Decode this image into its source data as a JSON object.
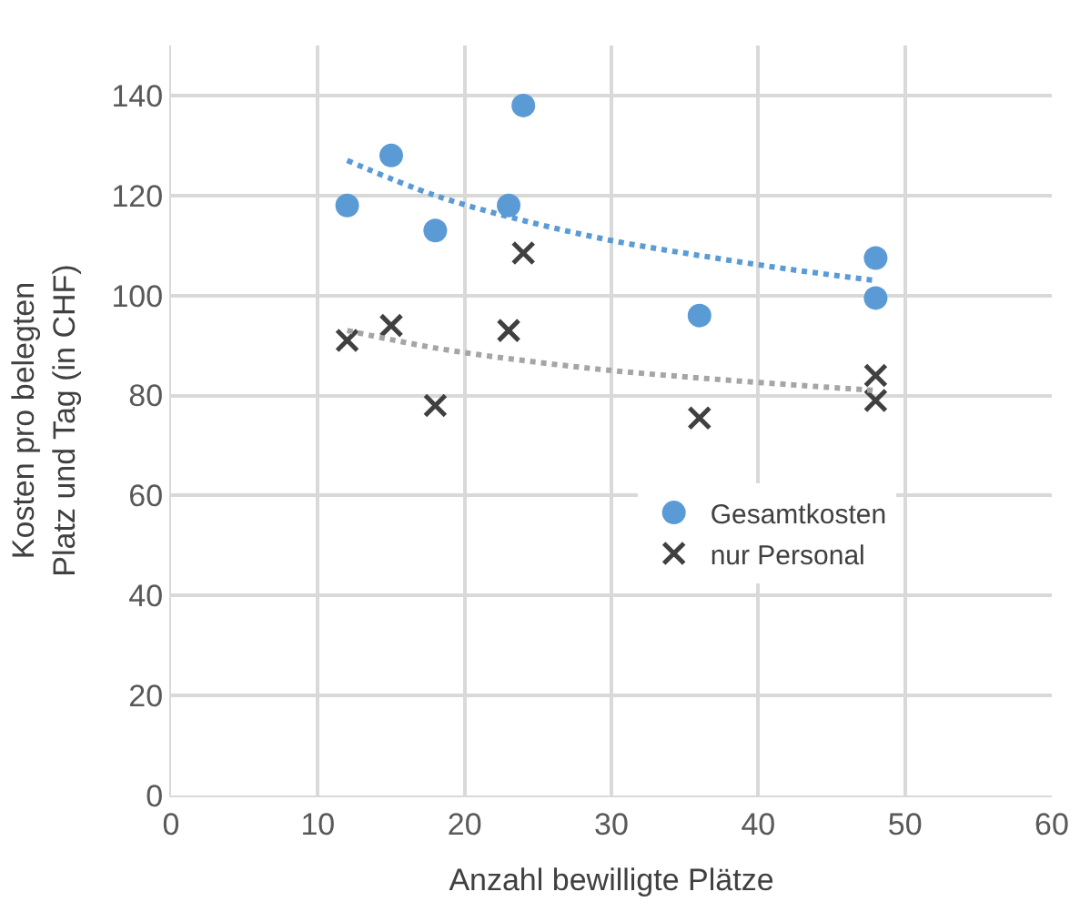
{
  "chart_data": {
    "type": "scatter",
    "xlabel": "Anzahl bewilligte Plätze",
    "ylabel": "Kosten pro belegten Platz und Tag (in CHF)",
    "xlim": [
      0,
      60
    ],
    "xticks": [
      0,
      10,
      20,
      30,
      40,
      50,
      60
    ],
    "ylim": [
      0,
      150
    ],
    "yticks": [
      0,
      20,
      40,
      60,
      80,
      100,
      120,
      140
    ],
    "grid": true,
    "legend": "right",
    "series": [
      {
        "name": "Gesamtkosten",
        "color": "#5b9bd5",
        "marker": "circle",
        "x": [
          12,
          15,
          18,
          23,
          24,
          36,
          48,
          48
        ],
        "values": [
          118,
          128,
          113,
          118,
          138,
          96,
          107.5,
          99.5
        ]
      },
      {
        "name": "nur Personal",
        "color": "#404040",
        "marker": "cross",
        "x": [
          12,
          15,
          18,
          23,
          24,
          36,
          48,
          48
        ],
        "values": [
          91,
          94,
          78,
          93,
          108.5,
          75.5,
          84,
          79
        ]
      },
      {
        "type": "line",
        "color": "#5b9bd5",
        "line_style": "dotted",
        "x": [
          12,
          18,
          24,
          30,
          36,
          42,
          48
        ],
        "values": [
          127,
          120,
          115,
          111,
          108,
          105.3,
          103
        ]
      },
      {
        "type": "line",
        "color": "#a5a5a5",
        "line_style": "dotted",
        "x": [
          12,
          18,
          24,
          30,
          36,
          42,
          48
        ],
        "values": [
          93,
          89.5,
          87,
          85,
          83.5,
          82.2,
          81
        ]
      }
    ]
  }
}
